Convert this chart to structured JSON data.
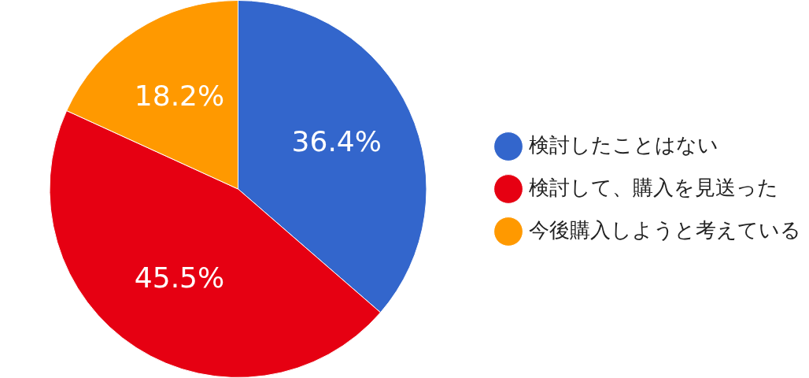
{
  "chart_data": {
    "type": "pie",
    "categories": [
      "検討したことはない",
      "検討して、購入を見送った",
      "今後購入しようと考えている"
    ],
    "values": [
      36.4,
      45.5,
      18.2
    ],
    "colors": [
      "#3366cc",
      "#e60012",
      "#ff9900"
    ],
    "value_labels": [
      "36.4%",
      "45.5%",
      "18.2%"
    ],
    "legend": "right"
  }
}
